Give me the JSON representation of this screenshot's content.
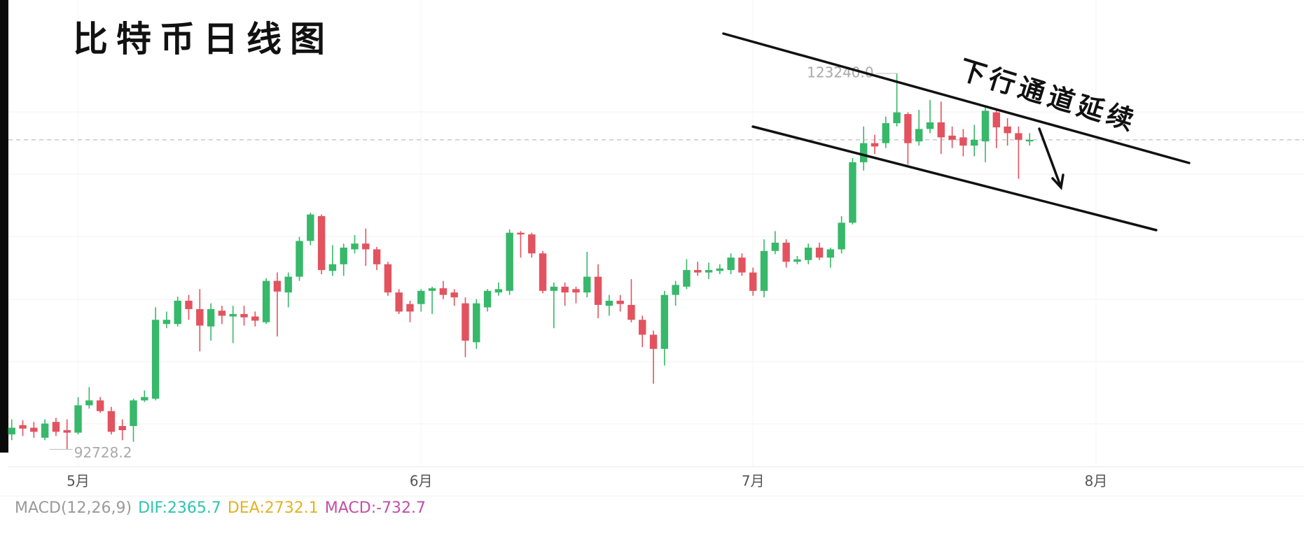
{
  "chart_data": {
    "type": "candlestick",
    "title": "比特币日线图",
    "annotation": "下行通道延续",
    "up_color": "#37b86a",
    "down_color": "#e2535f",
    "x": [
      0,
      1,
      2,
      3,
      4,
      5,
      6,
      7,
      8,
      9,
      10,
      11,
      12,
      13,
      14,
      15,
      16,
      17,
      18,
      19,
      20,
      21,
      22,
      23,
      24,
      25,
      26,
      27,
      28,
      29,
      30,
      31,
      32,
      33,
      34,
      35,
      36,
      37,
      38,
      39,
      40,
      41,
      42,
      43,
      44,
      45,
      46,
      47,
      48,
      49,
      50,
      51,
      52,
      53,
      54,
      55,
      56,
      57,
      58,
      59,
      60,
      61,
      62,
      63,
      64,
      65,
      66,
      67,
      68,
      69,
      70,
      71,
      72,
      73,
      74,
      75,
      76,
      77,
      78,
      79,
      80,
      81,
      82,
      83,
      84,
      85,
      86,
      87,
      88,
      89,
      90,
      91,
      92
    ],
    "open": [
      93940,
      94690,
      94480,
      93670,
      94950,
      94280,
      94080,
      96300,
      96700,
      95830,
      94620,
      94620,
      96700,
      96840,
      102900,
      102900,
      104790,
      104110,
      102700,
      103980,
      103510,
      103710,
      103510,
      103040,
      106400,
      105460,
      106740,
      109640,
      111660,
      107210,
      107750,
      108960,
      109430,
      108960,
      107750,
      105460,
      104520,
      104520,
      105590,
      105800,
      105460,
      104580,
      101420,
      104250,
      105460,
      105590,
      110310,
      110170,
      108630,
      105590,
      105930,
      105730,
      105460,
      106740,
      104380,
      104790,
      104450,
      103240,
      102030,
      100880,
      105260,
      105930,
      107280,
      107080,
      107210,
      107280,
      108290,
      107080,
      105590,
      108830,
      109500,
      107950,
      108090,
      109100,
      108290,
      108960,
      111120,
      116030,
      117580,
      117580,
      119200,
      119940,
      117720,
      118730,
      119270,
      118190,
      118050,
      117380,
      117720,
      120080,
      118930,
      118390,
      117720
    ],
    "high": [
      95160,
      95090,
      94950,
      95160,
      95290,
      95160,
      96970,
      97780,
      96970,
      96170,
      95160,
      96840,
      97510,
      104250,
      103910,
      105120,
      105260,
      105730,
      104580,
      104380,
      104380,
      104380,
      103910,
      106610,
      107080,
      107080,
      109970,
      111930,
      111790,
      109300,
      109430,
      110110,
      110650,
      109160,
      107950,
      105730,
      104790,
      105730,
      105930,
      106400,
      105730,
      105060,
      104920,
      105730,
      106270,
      110580,
      110440,
      110310,
      108830,
      106270,
      106270,
      105930,
      108760,
      107750,
      105260,
      105260,
      106540,
      103570,
      102360,
      105590,
      106400,
      108150,
      107950,
      107880,
      107750,
      108630,
      108630,
      107480,
      109770,
      110440,
      109770,
      108420,
      109430,
      109500,
      109100,
      111660,
      116370,
      118930,
      118260,
      119740,
      123240,
      120080,
      120280,
      121090,
      120950,
      118930,
      118730,
      119060,
      120550,
      120410,
      119600,
      118930,
      118390
    ],
    "low": [
      93470,
      93810,
      93670,
      93470,
      93810,
      92728.2,
      93940,
      96030,
      95690,
      93940,
      93470,
      93340,
      96570,
      96700,
      102560,
      102700,
      103240,
      100680,
      101550,
      102900,
      101350,
      102770,
      102700,
      102900,
      101890,
      104250,
      106400,
      109300,
      106940,
      106810,
      106810,
      108630,
      107620,
      107280,
      105190,
      103710,
      103040,
      103910,
      103710,
      104920,
      104380,
      100210,
      100880,
      103910,
      105190,
      105260,
      108290,
      108290,
      105390,
      102560,
      104380,
      104580,
      105060,
      103370,
      103570,
      103910,
      103040,
      101020,
      98050,
      99530,
      104380,
      105730,
      106810,
      106540,
      106940,
      106940,
      106810,
      105190,
      105060,
      108560,
      107480,
      107750,
      107750,
      108090,
      107480,
      108630,
      110980,
      115360,
      116710,
      117180,
      118930,
      115830,
      117380,
      118390,
      116710,
      117180,
      116510,
      116510,
      116030,
      117180,
      117380,
      114690,
      117380
    ],
    "close": [
      94480,
      94410,
      94150,
      94820,
      94150,
      94080,
      96300,
      96700,
      95830,
      94150,
      94280,
      96700,
      96970,
      103240,
      103240,
      104790,
      104110,
      102770,
      104110,
      103570,
      103710,
      103440,
      103170,
      106400,
      105530,
      106740,
      109640,
      111790,
      107280,
      107750,
      109100,
      109430,
      108960,
      107750,
      105460,
      103910,
      103910,
      105590,
      105800,
      105260,
      105060,
      101550,
      104580,
      105590,
      105730,
      110310,
      110170,
      108630,
      105590,
      105930,
      105460,
      105460,
      106740,
      104450,
      104790,
      104520,
      103240,
      102030,
      100880,
      105260,
      106070,
      107280,
      107080,
      107280,
      107410,
      108290,
      107080,
      105590,
      108830,
      109500,
      107950,
      108150,
      109100,
      108290,
      108960,
      111120,
      116030,
      117580,
      117310,
      119200,
      120080,
      117580,
      118730,
      119270,
      118050,
      117850,
      117380,
      117850,
      120210,
      118860,
      118390,
      117850,
      117850
    ],
    "xlim": [
      -0.3,
      116.8
    ],
    "xticks": [
      {
        "value": 6,
        "label": "5月"
      },
      {
        "value": 37,
        "label": "6月"
      },
      {
        "value": 67,
        "label": "7月"
      },
      {
        "value": 98,
        "label": "8月"
      }
    ],
    "ylim": [
      91300,
      129200
    ],
    "extreme_labels": [
      {
        "value": 123240,
        "label": "123240.0"
      },
      {
        "value": 92728.2,
        "label": "92728.2"
      }
    ],
    "indicator": {
      "name": "MACD(12,26,9)",
      "color": "#9a9a9a",
      "items": [
        {
          "label": "DIF:2365.7",
          "color": "#2ec4b0"
        },
        {
          "label": "DEA:2732.1",
          "color": "#e2b321"
        },
        {
          "label": "MACD:-732.7",
          "color": "#c24fa6"
        }
      ]
    }
  }
}
